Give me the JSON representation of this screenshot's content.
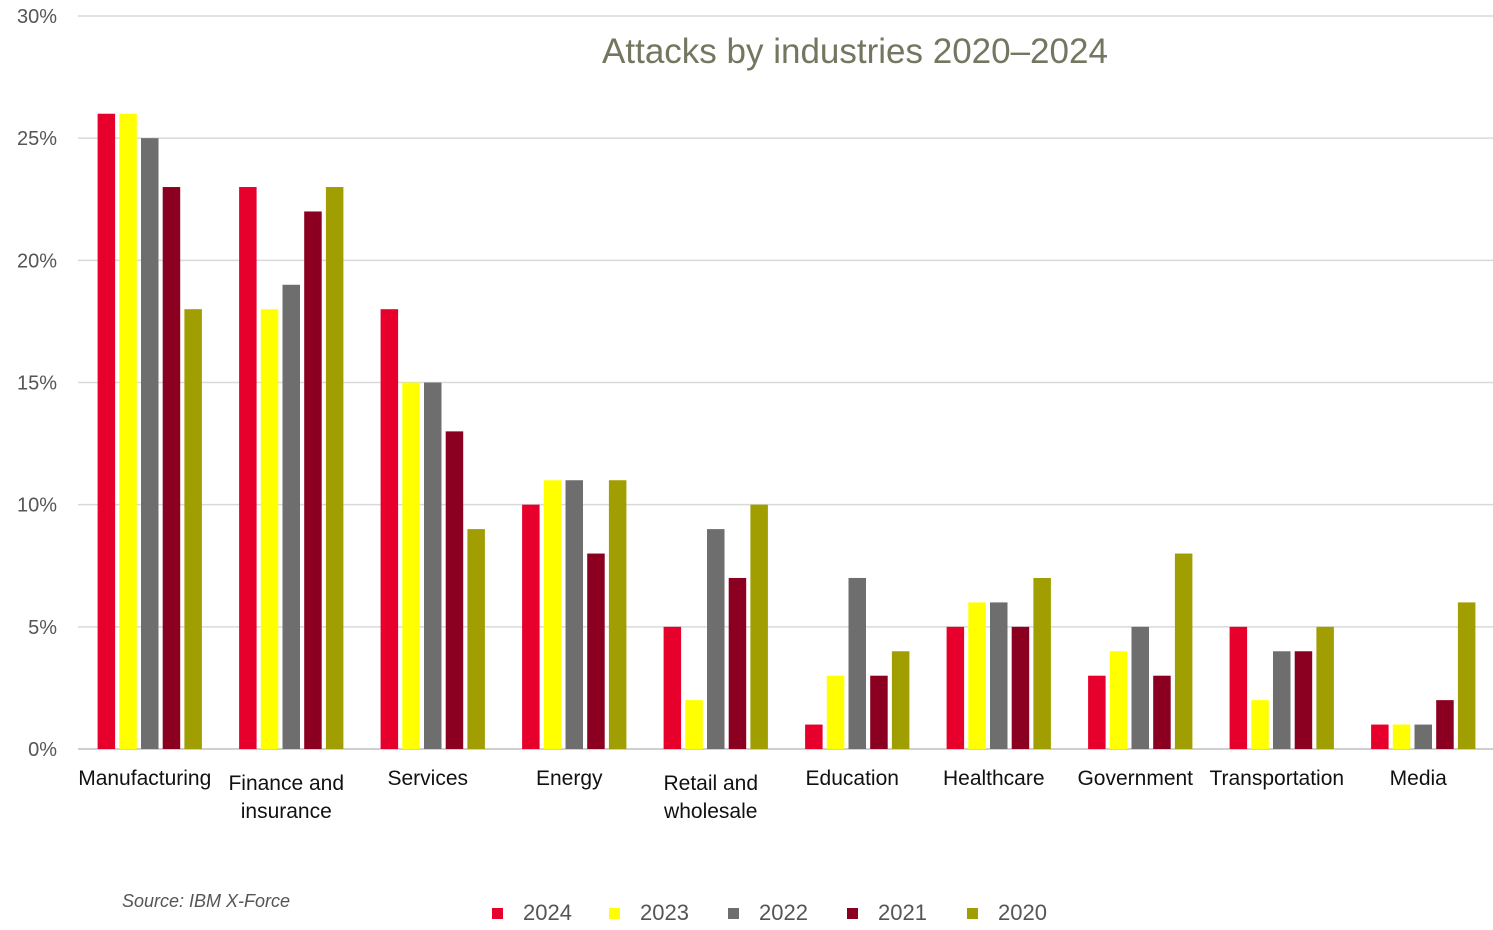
{
  "chart_data": {
    "type": "bar",
    "title": "Attacks by industries 2020–2024",
    "xlabel": "",
    "ylabel": "",
    "ylim": [
      0,
      30
    ],
    "yticks": [
      "0%",
      "5%",
      "10%",
      "15%",
      "20%",
      "25%",
      "30%"
    ],
    "grid": true,
    "legend_position": "bottom",
    "categories": [
      [
        "Manufacturing"
      ],
      [
        "Finance and",
        "insurance"
      ],
      [
        "Services"
      ],
      [
        "Energy"
      ],
      [
        "Retail and",
        "wholesale"
      ],
      [
        "Education"
      ],
      [
        "Healthcare"
      ],
      [
        "Government"
      ],
      [
        "Transportation"
      ],
      [
        "Media"
      ]
    ],
    "series": [
      {
        "name": "2024",
        "color": "#e8002d",
        "values": [
          26,
          23,
          18,
          10,
          5,
          1,
          5,
          3,
          5,
          1
        ]
      },
      {
        "name": "2023",
        "color": "#ffff00",
        "values": [
          26,
          18,
          15,
          11,
          2,
          3,
          6,
          4,
          2,
          1
        ]
      },
      {
        "name": "2022",
        "color": "#6e6e6e",
        "values": [
          25,
          19,
          15,
          11,
          9,
          7,
          6,
          5,
          4,
          1
        ]
      },
      {
        "name": "2021",
        "color": "#8b0020",
        "values": [
          23,
          22,
          13,
          8,
          7,
          3,
          5,
          3,
          4,
          2
        ]
      },
      {
        "name": "2020",
        "color": "#a09e00",
        "values": [
          18,
          23,
          9,
          11,
          10,
          4,
          7,
          8,
          5,
          6
        ]
      }
    ]
  },
  "source": "Source: IBM X-Force"
}
